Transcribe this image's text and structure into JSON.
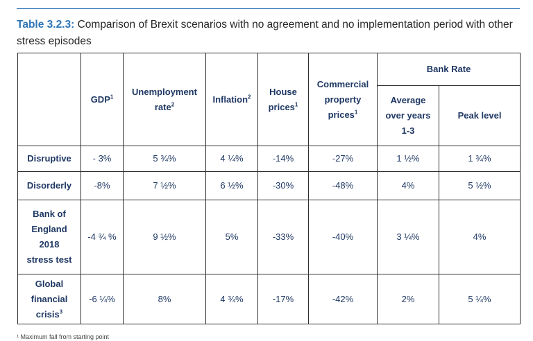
{
  "caption": {
    "label": "Table 3.2.3:",
    "text": " Comparison of Brexit scenarios with no agreement and no implementation period with other stress episodes"
  },
  "columns": {
    "gdp": {
      "label": "GDP",
      "sup": "1"
    },
    "unemployment": {
      "line1": "Unemployment",
      "line2": "rate",
      "sup": "2"
    },
    "inflation": {
      "label": "Inflation",
      "sup": "2"
    },
    "house": {
      "line1": "House",
      "line2": "prices",
      "sup": "1"
    },
    "commercial": {
      "line1": "Commercial",
      "line2": "property",
      "line3": "prices",
      "sup": "1"
    },
    "bank_rate": {
      "label": "Bank Rate"
    },
    "average": {
      "line1": "Average",
      "line2": "over years",
      "line3": "1-3"
    },
    "peak": {
      "label": "Peak level"
    }
  },
  "rows": [
    {
      "label_lines": [
        "Disruptive"
      ],
      "values": [
        "- 3%",
        "5 ¾%",
        "4 ¼%",
        "-14%",
        "-27%",
        "1 ½%",
        "1 ¾%"
      ]
    },
    {
      "label_lines": [
        "Disorderly"
      ],
      "values": [
        "-8%",
        "7 ½%",
        "6 ½%",
        "-30%",
        "-48%",
        "4%",
        "5 ½%"
      ]
    },
    {
      "label_lines": [
        "Bank of",
        "England",
        "2018",
        "stress test"
      ],
      "values": [
        "-4 ¾ %",
        "9 ½%",
        "5%",
        "-33%",
        "-40%",
        "3 ¼%",
        "4%"
      ]
    },
    {
      "label_lines": [
        "Global",
        "financial",
        "crisis"
      ],
      "label_sup": "3",
      "values": [
        "-6 ¼%",
        "8%",
        "4 ¾%",
        "-17%",
        "-42%",
        "2%",
        "5 ¼%"
      ]
    }
  ],
  "footnote": "¹ Maximum fall from starting point"
}
